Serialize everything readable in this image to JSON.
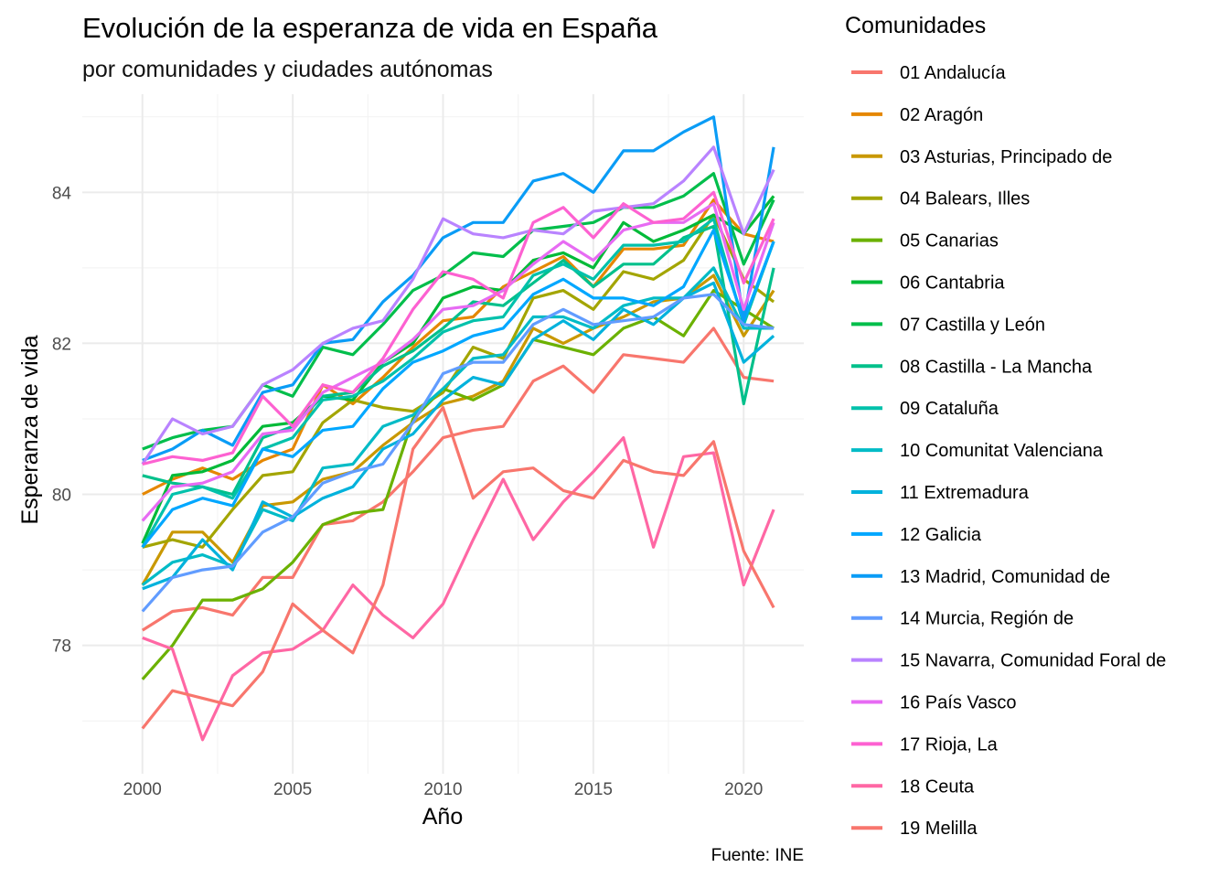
{
  "chart_data": {
    "type": "line",
    "title": "Evolución de la esperanza de vida en España",
    "subtitle": "por comunidades y ciudades autónomas",
    "xlabel": "Año",
    "ylabel": "Esperanza de vida",
    "caption": "Fuente: INE",
    "legend_title": "Comunidades",
    "legend_position": "right",
    "grid": true,
    "xlim": [
      1998,
      2022
    ],
    "ylim": [
      76.3,
      85.3
    ],
    "x_ticks": [
      2000,
      2005,
      2010,
      2015,
      2020
    ],
    "y_ticks": [
      78,
      80,
      82,
      84
    ],
    "x": [
      2000,
      2001,
      2002,
      2003,
      2004,
      2005,
      2006,
      2007,
      2008,
      2009,
      2010,
      2011,
      2012,
      2013,
      2014,
      2015,
      2016,
      2017,
      2018,
      2019,
      2020,
      2021
    ],
    "series": [
      {
        "name": "01 Andalucía",
        "color": "#F8766D",
        "values": [
          78.2,
          78.45,
          78.5,
          78.4,
          78.9,
          78.9,
          79.6,
          79.65,
          79.9,
          80.3,
          80.75,
          80.85,
          80.9,
          81.5,
          81.7,
          81.35,
          81.85,
          81.8,
          81.75,
          82.2,
          81.55,
          81.5
        ]
      },
      {
        "name": "02 Aragón",
        "color": "#E58700",
        "values": [
          80.0,
          80.2,
          80.35,
          80.2,
          80.45,
          80.6,
          81.45,
          81.2,
          81.55,
          81.95,
          82.3,
          82.35,
          82.75,
          82.95,
          83.15,
          82.75,
          83.25,
          83.25,
          83.3,
          83.9,
          83.45,
          83.35
        ]
      },
      {
        "name": "03 Asturias, Principado de",
        "color": "#C99800",
        "values": [
          78.8,
          79.5,
          79.5,
          79.1,
          79.85,
          79.9,
          80.2,
          80.3,
          80.65,
          80.95,
          81.2,
          81.3,
          81.5,
          82.2,
          82.0,
          82.2,
          82.35,
          82.55,
          82.6,
          82.9,
          82.1,
          82.7
        ]
      },
      {
        "name": "04 Balears, Illes",
        "color": "#A3A500",
        "values": [
          79.3,
          79.4,
          79.3,
          79.8,
          80.25,
          80.3,
          80.95,
          81.25,
          81.15,
          81.1,
          81.35,
          81.95,
          81.8,
          82.6,
          82.7,
          82.45,
          82.95,
          82.85,
          83.1,
          83.7,
          82.85,
          82.55
        ]
      },
      {
        "name": "05 Canarias",
        "color": "#6BB100",
        "values": [
          77.55,
          78.0,
          78.6,
          78.6,
          78.75,
          79.1,
          79.6,
          79.75,
          79.8,
          81.0,
          81.4,
          81.25,
          81.45,
          82.05,
          81.95,
          81.85,
          82.2,
          82.35,
          82.1,
          82.7,
          82.45,
          82.2
        ]
      },
      {
        "name": "06 Cantabria",
        "color": "#00BA38",
        "values": [
          79.35,
          80.25,
          80.3,
          80.45,
          80.9,
          80.95,
          81.3,
          81.25,
          81.75,
          82.0,
          82.6,
          82.75,
          82.7,
          83.1,
          83.2,
          83.0,
          83.6,
          83.35,
          83.5,
          83.7,
          83.45,
          83.95
        ]
      },
      {
        "name": "07 Castilla y León",
        "color": "#00BE4B",
        "values": [
          80.6,
          80.75,
          80.85,
          80.9,
          81.45,
          81.3,
          81.95,
          81.85,
          82.25,
          82.7,
          82.9,
          83.2,
          83.15,
          83.5,
          83.55,
          83.6,
          83.8,
          83.8,
          83.95,
          84.25,
          83.05,
          83.9
        ]
      },
      {
        "name": "08 Castilla - La Mancha",
        "color": "#00C08B",
        "values": [
          80.25,
          80.15,
          80.1,
          80.0,
          80.75,
          80.9,
          81.3,
          81.35,
          81.7,
          81.9,
          82.2,
          82.55,
          82.5,
          82.8,
          83.1,
          82.75,
          83.05,
          83.05,
          83.4,
          83.55,
          81.2,
          83.0
        ]
      },
      {
        "name": "09 Cataluña",
        "color": "#00C1AB",
        "values": [
          79.3,
          80.0,
          80.1,
          79.95,
          80.6,
          80.75,
          81.25,
          81.3,
          81.5,
          81.8,
          82.15,
          82.3,
          82.35,
          82.9,
          83.05,
          82.85,
          83.3,
          83.3,
          83.35,
          83.65,
          82.25,
          83.35
        ]
      },
      {
        "name": "10 Comunitat Valenciana",
        "color": "#00BBC6",
        "values": [
          78.8,
          79.1,
          79.2,
          79.05,
          79.8,
          79.65,
          80.35,
          80.4,
          80.9,
          81.05,
          81.4,
          81.8,
          81.85,
          82.35,
          82.35,
          82.2,
          82.5,
          82.6,
          82.6,
          83.0,
          82.2,
          82.2
        ]
      },
      {
        "name": "11 Extremadura",
        "color": "#00B2DC",
        "values": [
          78.75,
          78.9,
          79.4,
          79.0,
          79.9,
          79.7,
          79.95,
          80.1,
          80.6,
          80.8,
          81.25,
          81.55,
          81.45,
          82.05,
          82.3,
          82.05,
          82.45,
          82.25,
          82.6,
          82.8,
          81.75,
          82.1
        ]
      },
      {
        "name": "12 Galicia",
        "color": "#00A7FF",
        "values": [
          79.3,
          79.8,
          79.95,
          79.85,
          80.6,
          80.5,
          80.85,
          80.9,
          81.4,
          81.75,
          81.9,
          82.1,
          82.2,
          82.65,
          82.85,
          82.6,
          82.6,
          82.5,
          82.75,
          83.5,
          82.3,
          83.35
        ]
      },
      {
        "name": "13 Madrid, Comunidad de",
        "color": "#0A9CF6",
        "values": [
          80.45,
          80.6,
          80.85,
          80.65,
          81.35,
          81.45,
          82.0,
          82.05,
          82.55,
          82.9,
          83.4,
          83.6,
          83.6,
          84.15,
          84.25,
          84.0,
          84.55,
          84.55,
          84.8,
          85.0,
          82.3,
          84.6
        ]
      },
      {
        "name": "14 Murcia, Región de",
        "color": "#619CFF",
        "values": [
          78.45,
          78.9,
          79.0,
          79.05,
          79.5,
          79.7,
          80.15,
          80.3,
          80.4,
          80.95,
          81.6,
          81.75,
          81.75,
          82.25,
          82.45,
          82.25,
          82.3,
          82.35,
          82.6,
          82.65,
          82.25,
          82.2
        ]
      },
      {
        "name": "15 Navarra, Comunidad Foral de",
        "color": "#B983FF",
        "values": [
          80.4,
          81.0,
          80.8,
          80.9,
          81.45,
          81.65,
          82.0,
          82.2,
          82.3,
          82.85,
          83.65,
          83.45,
          83.4,
          83.5,
          83.45,
          83.75,
          83.8,
          83.85,
          84.15,
          84.6,
          83.45,
          84.3
        ]
      },
      {
        "name": "16 País Vasco",
        "color": "#E76BF3",
        "values": [
          79.65,
          80.1,
          80.15,
          80.3,
          80.8,
          80.85,
          81.35,
          81.55,
          81.75,
          82.05,
          82.45,
          82.5,
          82.7,
          83.05,
          83.35,
          83.1,
          83.5,
          83.6,
          83.6,
          83.85,
          82.45,
          83.6
        ]
      },
      {
        "name": "17 Rioja, La",
        "color": "#FD61D1",
        "values": [
          80.4,
          80.5,
          80.45,
          80.55,
          81.3,
          80.9,
          81.45,
          81.35,
          81.8,
          82.45,
          82.95,
          82.85,
          82.6,
          83.6,
          83.8,
          83.4,
          83.85,
          83.6,
          83.65,
          84.0,
          82.8,
          83.65
        ]
      },
      {
        "name": "18 Ceuta",
        "color": "#FF67A4",
        "values": [
          78.1,
          77.95,
          76.75,
          77.6,
          77.9,
          77.95,
          78.2,
          78.8,
          78.4,
          78.1,
          78.55,
          79.4,
          80.2,
          79.4,
          79.9,
          80.3,
          80.75,
          79.3,
          80.5,
          80.55,
          78.8,
          79.8
        ]
      },
      {
        "name": "19 Melilla",
        "color": "#F8766D",
        "values": [
          76.9,
          77.4,
          77.3,
          77.2,
          77.65,
          78.55,
          78.2,
          77.9,
          78.8,
          80.6,
          81.15,
          79.95,
          80.3,
          80.35,
          80.05,
          79.95,
          80.45,
          80.3,
          80.25,
          80.7,
          79.25,
          78.5
        ]
      }
    ]
  }
}
